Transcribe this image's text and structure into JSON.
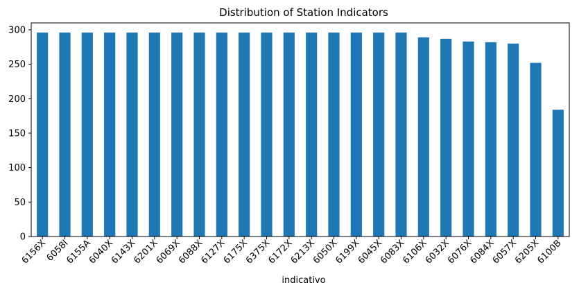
{
  "chart_data": {
    "type": "bar",
    "title": "Distribution of Station Indicators",
    "xlabel": "indicativo",
    "ylabel": "",
    "ylim": [
      0,
      310
    ],
    "yticks": [
      0,
      50,
      100,
      150,
      200,
      250,
      300
    ],
    "grid": false,
    "legend": "none",
    "bar_color": "#1f77b4",
    "categories": [
      "6156X",
      "6058I",
      "6155A",
      "6040X",
      "6143X",
      "6201X",
      "6069X",
      "6088X",
      "6127X",
      "6175X",
      "6375X",
      "6172X",
      "6213X",
      "6050X",
      "6199X",
      "6045X",
      "6083X",
      "6106X",
      "6032X",
      "6076X",
      "6084X",
      "6057X",
      "6205X",
      "6100B"
    ],
    "values": [
      296,
      296,
      296,
      296,
      296,
      296,
      296,
      296,
      296,
      296,
      296,
      296,
      296,
      296,
      296,
      296,
      296,
      289,
      287,
      283,
      282,
      280,
      252,
      184
    ]
  }
}
